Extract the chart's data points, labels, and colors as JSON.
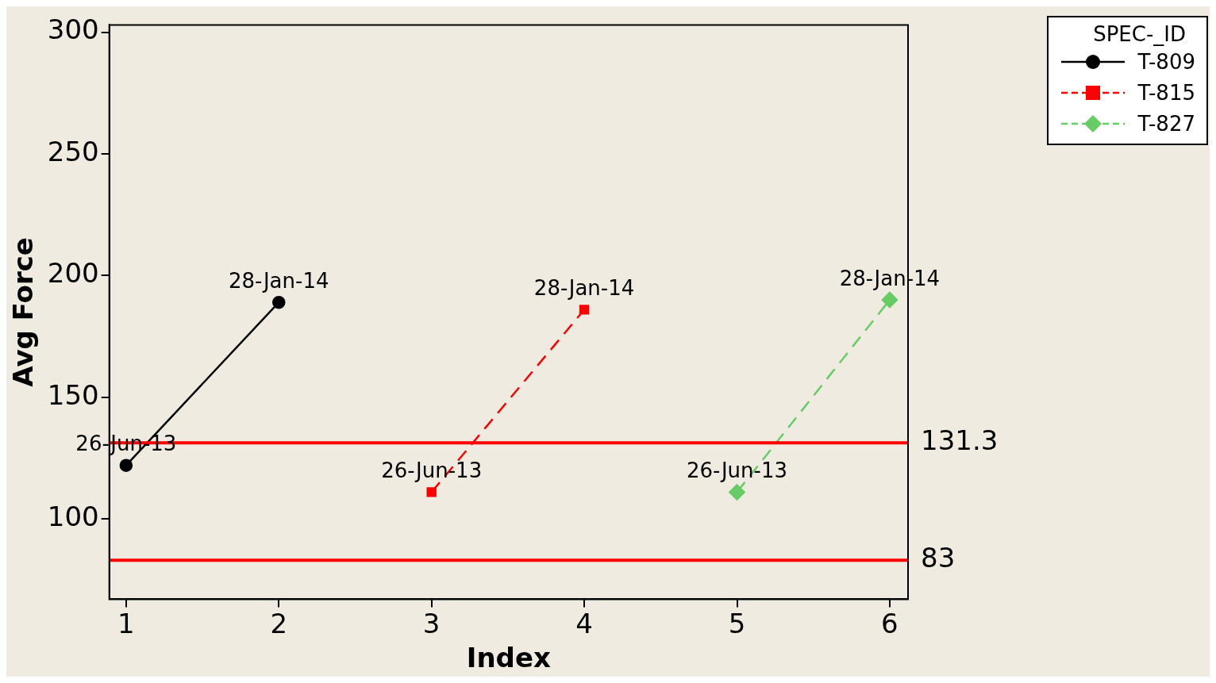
{
  "chart_data": {
    "type": "line",
    "xlabel": "Index",
    "ylabel": "Avg Force",
    "legend_title": "SPEC-_ID",
    "legend": "top right",
    "xlim": [
      0.89,
      6.12
    ],
    "xticks": [
      1,
      2,
      3,
      4,
      5,
      6
    ],
    "ylim": [
      67,
      303
    ],
    "yticks": [
      100,
      150,
      200,
      250,
      300
    ],
    "grid": false,
    "series": [
      {
        "name": "T-809",
        "color": "#000000",
        "x": [
          1,
          2
        ],
        "values": [
          122,
          189
        ],
        "marker": "circle",
        "line_style": "solid",
        "value_labels": [
          "26-Jun-13",
          "28-Jan-14"
        ]
      },
      {
        "name": "T-815",
        "color": "#ff0000",
        "x": [
          3,
          4
        ],
        "values": [
          111,
          186
        ],
        "marker": "square",
        "line_style": "dashed",
        "value_labels": [
          "26-Jun-13",
          "28-Jan-14"
        ]
      },
      {
        "name": "T-827",
        "color": "#66cc66",
        "x": [
          5,
          6
        ],
        "values": [
          111,
          190
        ],
        "marker": "diamond",
        "line_style": "dashed",
        "value_labels": [
          "26-Jun-13",
          "28-Jan-14"
        ]
      }
    ],
    "ref_lines": [
      {
        "axis": "y",
        "value": 131.3,
        "label": "131.3",
        "color": "#ff0000"
      },
      {
        "axis": "y",
        "value": 83,
        "label": "83",
        "color": "#ff0000"
      }
    ]
  }
}
